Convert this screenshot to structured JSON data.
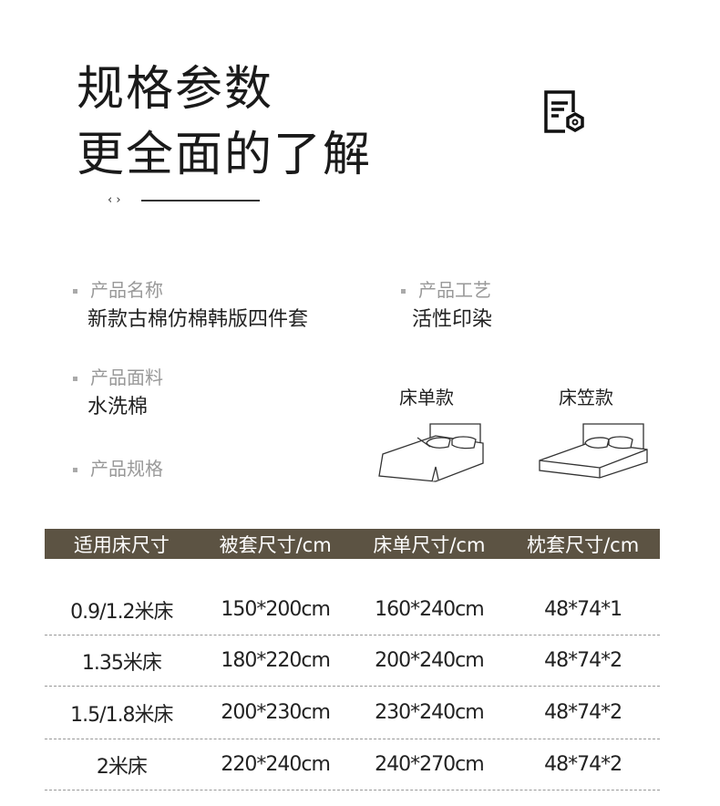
{
  "title": {
    "line1": "规格参数",
    "line2": "更全面的了解",
    "nav": "‹ ›"
  },
  "info": [
    {
      "label": "产品名称",
      "value": "新款古棉仿棉韩版四件套"
    },
    {
      "label": "产品工艺",
      "value": "活性印染"
    },
    {
      "label": "产品面料",
      "value": "水洗棉"
    },
    {
      "label": "产品规格",
      "value": ""
    }
  ],
  "beds": [
    {
      "label": "床单款",
      "icon": "flat-sheet-bed-icon"
    },
    {
      "label": "床笠款",
      "icon": "fitted-sheet-bed-icon"
    }
  ],
  "table": {
    "headers": [
      "适用床尺寸",
      "被套尺寸/cm",
      "床单尺寸/cm",
      "枕套尺寸/cm"
    ],
    "rows": [
      [
        "0.9/1.2米床",
        "150*200cm",
        "160*240cm",
        "48*74*1"
      ],
      [
        "1.35米床",
        "180*220cm",
        "200*240cm",
        "48*74*2"
      ],
      [
        "1.5/1.8米床",
        "200*230cm",
        "230*240cm",
        "48*74*2"
      ],
      [
        "2米床",
        "220*240cm",
        "240*270cm",
        "48*74*2"
      ]
    ]
  },
  "colors": {
    "header_bg": "#5c5343"
  }
}
